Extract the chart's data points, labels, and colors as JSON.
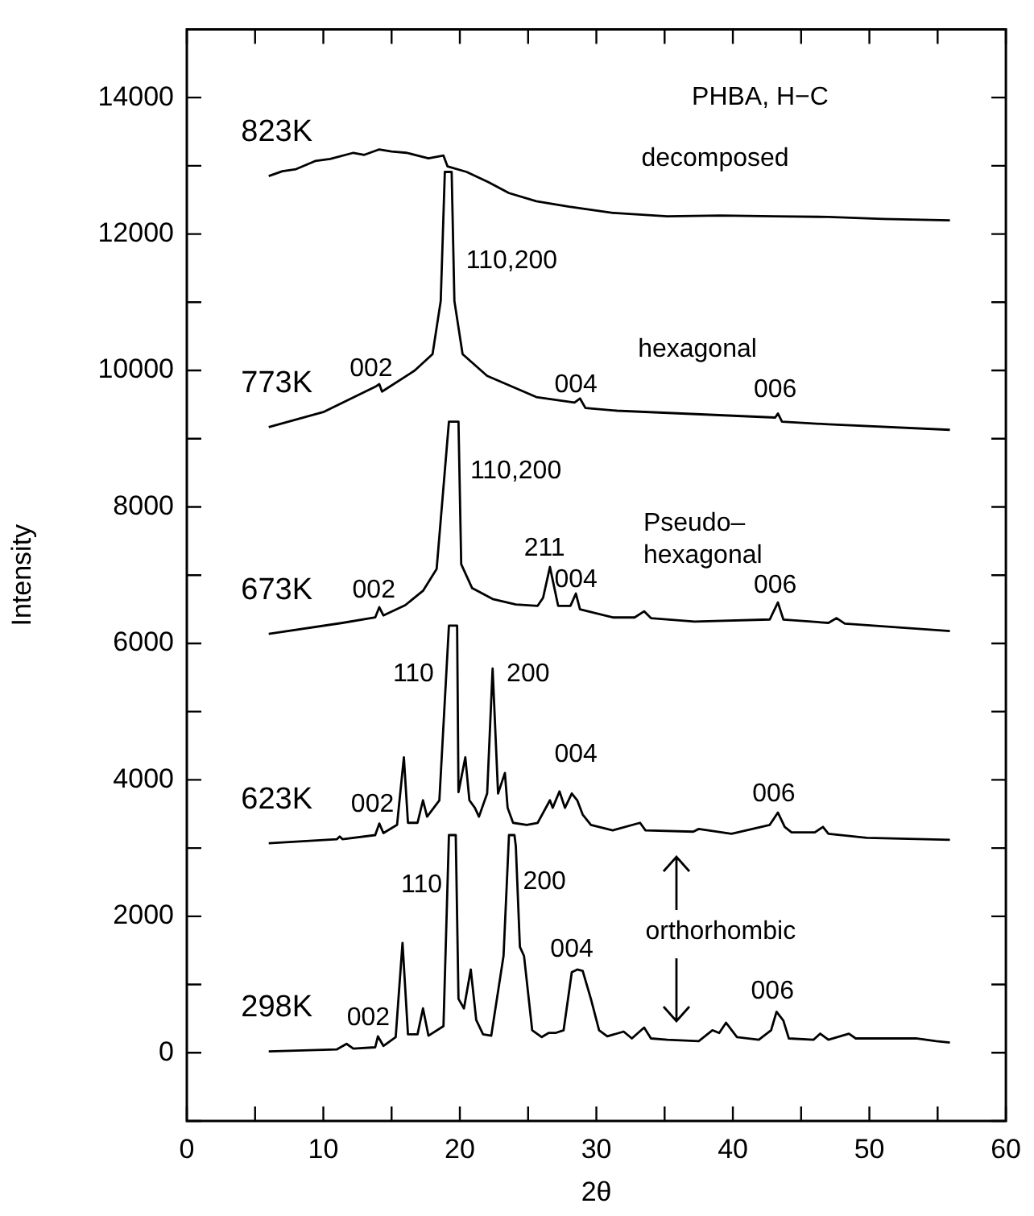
{
  "chart_data": {
    "type": "line",
    "xlabel": "2θ",
    "ylabel": "Intensity",
    "xlim": [
      0,
      60
    ],
    "ylim": [
      -1000,
      15000
    ],
    "xticks": [
      0,
      {
        "value": 5,
        "label": null
      },
      10,
      {
        "value": 15,
        "label": null
      },
      20,
      {
        "value": 25,
        "label": null
      },
      30,
      {
        "value": 35,
        "label": null
      },
      40,
      {
        "value": 45,
        "label": null
      },
      50,
      {
        "value": 55,
        "label": null
      },
      60
    ],
    "yticks": [
      {
        "value": -1000,
        "label": null
      },
      0,
      {
        "value": 1000,
        "label": null
      },
      2000,
      {
        "value": 3000,
        "label": null
      },
      4000,
      {
        "value": 5000,
        "label": null
      },
      6000,
      {
        "value": 7000,
        "label": null
      },
      8000,
      {
        "value": 9000,
        "label": null
      },
      10000,
      {
        "value": 11000,
        "label": null
      },
      12000,
      {
        "value": 13000,
        "label": null
      },
      14000
    ],
    "grid": false,
    "legend": false,
    "marker": "none",
    "line_style": "solid",
    "series": [
      {
        "name": "298K",
        "color": "#000000",
        "x": [
          6,
          11,
          11.7,
          12.2,
          13.8,
          14,
          14.4,
          15.3,
          15.8,
          16.2,
          16.9,
          17.3,
          17.7,
          18.8,
          19.2,
          19.7,
          19.9,
          20.3,
          20.8,
          21.2,
          21.7,
          22.3,
          23.2,
          23.6,
          24,
          24.1,
          24.4,
          24.7,
          25.3,
          26,
          26.5,
          27,
          27.6,
          28.2,
          28.6,
          29,
          29.6,
          30.2,
          30.8,
          32,
          32.6,
          33.5,
          34,
          35.2,
          37.5,
          38.5,
          39,
          39.5,
          40.3,
          41.9,
          42.8,
          43.2,
          43.7,
          44.1,
          45.9,
          46.4,
          47,
          48.5,
          49,
          51,
          53.4,
          54.9,
          55.9
        ],
        "values": [
          20,
          50,
          130,
          60,
          80,
          240,
          100,
          230,
          1610,
          270,
          270,
          650,
          250,
          390,
          3190,
          3190,
          790,
          650,
          1220,
          480,
          270,
          250,
          1420,
          3190,
          3190,
          3030,
          1550,
          1420,
          330,
          230,
          290,
          290,
          330,
          1180,
          1220,
          1200,
          790,
          330,
          240,
          310,
          210,
          370,
          210,
          190,
          170,
          330,
          290,
          440,
          230,
          190,
          330,
          600,
          470,
          210,
          190,
          280,
          190,
          280,
          210,
          210,
          210,
          170,
          150
        ]
      },
      {
        "name": "623K",
        "color": "#000000",
        "x": [
          6,
          11,
          11.2,
          11.4,
          13.8,
          14.1,
          14.4,
          15.4,
          15.9,
          16.2,
          16.9,
          17.3,
          17.6,
          18.5,
          19.2,
          19.8,
          19.9,
          20.4,
          20.7,
          21.1,
          21.4,
          22,
          22.4,
          22.8,
          23.3,
          23.5,
          23.9,
          24.9,
          25.7,
          26.6,
          26.8,
          27.3,
          27.7,
          28.2,
          28.6,
          29,
          29.6,
          31.2,
          33.2,
          33.6,
          37.1,
          37.5,
          39.9,
          42.7,
          43.3,
          43.8,
          44.3,
          46,
          46.6,
          47,
          49.8,
          55.9
        ],
        "values": [
          3070,
          3130,
          3170,
          3130,
          3190,
          3360,
          3220,
          3340,
          4330,
          3370,
          3370,
          3700,
          3460,
          3700,
          6260,
          6260,
          3820,
          4330,
          3700,
          3590,
          3460,
          3800,
          5630,
          3800,
          4100,
          3590,
          3370,
          3340,
          3370,
          3700,
          3590,
          3830,
          3590,
          3800,
          3700,
          3490,
          3340,
          3260,
          3370,
          3260,
          3240,
          3280,
          3210,
          3340,
          3520,
          3310,
          3230,
          3230,
          3310,
          3210,
          3150,
          3120
        ]
      },
      {
        "name": "673K",
        "color": "#000000",
        "x": [
          6,
          11.4,
          13.8,
          14.1,
          14.4,
          16,
          17.3,
          18.3,
          19.2,
          19.9,
          20.1,
          20.9,
          22.4,
          24.1,
          25.7,
          26.1,
          26.6,
          26.8,
          27.2,
          28.1,
          28.5,
          28.8,
          31.2,
          32.8,
          33.5,
          34,
          37.2,
          42.7,
          43.3,
          43.7,
          47,
          47.6,
          48.2,
          55.9
        ],
        "values": [
          6140,
          6300,
          6380,
          6530,
          6410,
          6560,
          6770,
          7090,
          9250,
          9250,
          7160,
          6810,
          6650,
          6570,
          6550,
          6670,
          7120,
          6930,
          6550,
          6550,
          6730,
          6500,
          6380,
          6380,
          6470,
          6370,
          6320,
          6350,
          6600,
          6350,
          6300,
          6370,
          6290,
          6180
        ]
      },
      {
        "name": "773K",
        "color": "#000000",
        "x": [
          6,
          10,
          13.8,
          14.1,
          14.3,
          16.7,
          18,
          18.6,
          18.9,
          19.4,
          19.6,
          20.2,
          22,
          25.6,
          28.4,
          28.8,
          29.2,
          31.5,
          43.1,
          43.3,
          43.6,
          47,
          55.9
        ],
        "values": [
          9170,
          9390,
          9760,
          9800,
          9690,
          10000,
          10240,
          11020,
          12910,
          12910,
          11020,
          10240,
          9920,
          9610,
          9530,
          9590,
          9450,
          9410,
          9310,
          9370,
          9250,
          9210,
          9130
        ]
      },
      {
        "name": "823K",
        "color": "#000000",
        "x": [
          6,
          7,
          8,
          9.4,
          10.5,
          12.2,
          13,
          14.1,
          15,
          16.1,
          17.7,
          18.8,
          19.1,
          20.5,
          22.1,
          23.6,
          25.6,
          28,
          31.2,
          35.2,
          39.1,
          43.1,
          47,
          51,
          55.9
        ],
        "values": [
          12850,
          12920,
          12950,
          13070,
          13100,
          13190,
          13160,
          13240,
          13210,
          13190,
          13110,
          13150,
          12990,
          12910,
          12760,
          12600,
          12480,
          12400,
          12310,
          12260,
          12270,
          12260,
          12250,
          12220,
          12200
        ]
      }
    ],
    "annotations": [
      "orthorhombic",
      "002",
      "110",
      "200",
      "004",
      "006",
      "002",
      "110",
      "200",
      "004",
      "006",
      "002",
      "110,200",
      "211",
      "004",
      "006",
      "Pseudo–\nhexagonal",
      "002",
      "110,200",
      "004",
      "006",
      "hexagonal",
      "decomposed",
      "PHBA, H−C"
    ]
  }
}
